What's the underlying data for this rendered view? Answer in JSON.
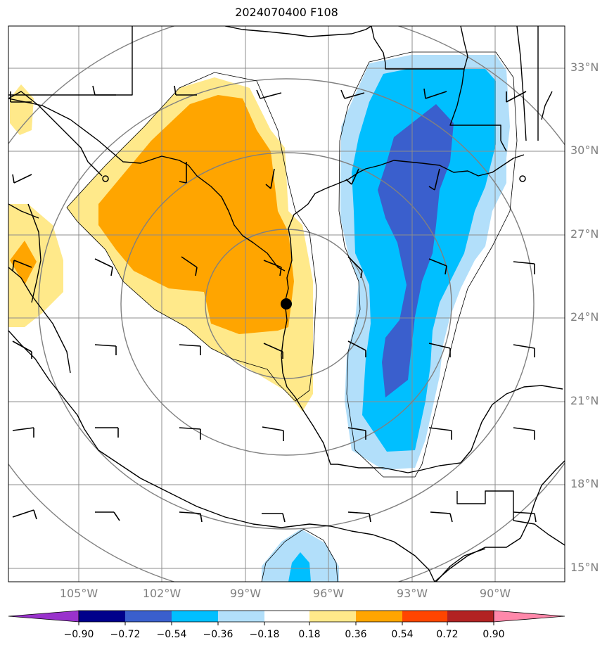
{
  "title": "2024070400 F108",
  "lat_labels": [
    "33°N",
    "30°N",
    "27°N",
    "24°N",
    "21°N",
    "18°N",
    "15°N"
  ],
  "lon_labels": [
    "105°W",
    "102°W",
    "99°W",
    "96°W",
    "93°W",
    "90°W"
  ],
  "colorbar": {
    "labels": [
      "−0.90",
      "−0.72",
      "−0.54",
      "−0.36",
      "−0.18",
      "0.18",
      "0.36",
      "0.54",
      "0.72",
      "0.90"
    ],
    "colors": [
      "#9932cc",
      "#00008b",
      "#3a5fcd",
      "#00bfff",
      "#b2dffa",
      "#ffffff",
      "#ffe98a",
      "#ffa500",
      "#ff4500",
      "#b22222",
      "#ff88aa"
    ]
  },
  "contour_colors": {
    "pos_weak": "#ffe98a",
    "pos_mid": "#ffa500",
    "neg_weak": "#b2dffa",
    "neg_mid": "#00bfff",
    "neg_strong": "#3a5fcd"
  },
  "center_marker": "storm-center-dot"
}
